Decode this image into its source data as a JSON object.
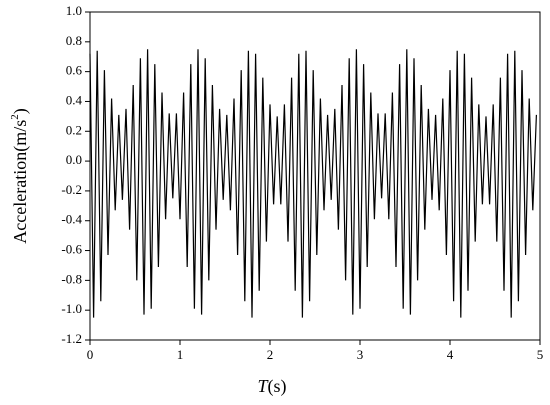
{
  "chart_data": {
    "type": "line",
    "xlabel": {
      "italic": "T",
      "text": "(s)"
    },
    "ylabel": {
      "text": "Acceleration(m/s",
      "sup": "2",
      "end": ")"
    },
    "xlim": [
      0,
      5
    ],
    "xticks": [
      0,
      1,
      2,
      3,
      4,
      5
    ],
    "ylim": [
      -1.2,
      1.0
    ],
    "yticks": [
      -1.2,
      {
        "value": -1.0,
        "label": "-1.0"
      },
      -0.8,
      -0.6,
      -0.4,
      -0.2,
      {
        "value": 0,
        "label": "0.0"
      },
      0.2,
      0.4,
      0.6,
      0.8,
      {
        "value": 1.0,
        "label": "1.0"
      }
    ],
    "series": [
      {
        "color": "#000000",
        "x": [
          0,
          0.04,
          0.08,
          0.12,
          0.16,
          0.2,
          0.24,
          0.28,
          0.32,
          0.36,
          0.4,
          0.44,
          0.48,
          0.52,
          0.56,
          0.6,
          0.64,
          0.68,
          0.72,
          0.76,
          0.8,
          0.84,
          0.88,
          0.92,
          0.96,
          1.0,
          1.04,
          1.08,
          1.12,
          1.16,
          1.2,
          1.24,
          1.28,
          1.32,
          1.36,
          1.4,
          1.44,
          1.48,
          1.52,
          1.56,
          1.6,
          1.64,
          1.68,
          1.72,
          1.76,
          1.8,
          1.84,
          1.88,
          1.92,
          1.96,
          2.0,
          2.04,
          2.08,
          2.12,
          2.16,
          2.2,
          2.24,
          2.28,
          2.32,
          2.36,
          2.4,
          2.44,
          2.48,
          2.52,
          2.56,
          2.6,
          2.64,
          2.68,
          2.72,
          2.76,
          2.8,
          2.84,
          2.88,
          2.92,
          2.96,
          3.0,
          3.04,
          3.08,
          3.12,
          3.16,
          3.2,
          3.24,
          3.28,
          3.32,
          3.36,
          3.4,
          3.44,
          3.48,
          3.52,
          3.56,
          3.6,
          3.64,
          3.68,
          3.72,
          3.76,
          3.8,
          3.84,
          3.88,
          3.92,
          3.96,
          4.0,
          4.04,
          4.08,
          4.12,
          4.16,
          4.2,
          4.24,
          4.28,
          4.32,
          4.36,
          4.4,
          4.44,
          4.48,
          4.52,
          4.56,
          4.6,
          4.64,
          4.68,
          4.72,
          4.76,
          4.8,
          4.84,
          4.88,
          4.92,
          4.96
        ],
        "values": [
          0.72,
          -1.05,
          0.74,
          -0.94,
          0.61,
          -0.63,
          0.42,
          -0.33,
          0.31,
          -0.26,
          0.35,
          -0.46,
          0.51,
          -0.8,
          0.69,
          -1.03,
          0.75,
          -0.99,
          0.65,
          -0.71,
          0.46,
          -0.39,
          0.32,
          -0.25,
          0.32,
          -0.39,
          0.46,
          -0.71,
          0.65,
          -0.99,
          0.75,
          -1.03,
          0.69,
          -0.8,
          0.51,
          -0.46,
          0.35,
          -0.26,
          0.31,
          -0.33,
          0.42,
          -0.63,
          0.61,
          -0.94,
          0.74,
          -1.05,
          0.72,
          -0.87,
          0.56,
          -0.54,
          0.38,
          -0.29,
          0.3,
          -0.29,
          0.38,
          -0.54,
          0.56,
          -0.87,
          0.72,
          -1.05,
          0.74,
          -0.94,
          0.61,
          -0.63,
          0.42,
          -0.33,
          0.31,
          -0.26,
          0.35,
          -0.46,
          0.51,
          -0.8,
          0.69,
          -1.03,
          0.75,
          -0.99,
          0.65,
          -0.71,
          0.46,
          -0.39,
          0.32,
          -0.25,
          0.32,
          -0.39,
          0.46,
          -0.71,
          0.65,
          -0.99,
          0.75,
          -1.03,
          0.69,
          -0.8,
          0.51,
          -0.46,
          0.35,
          -0.26,
          0.31,
          -0.33,
          0.42,
          -0.63,
          0.61,
          -0.94,
          0.74,
          -1.05,
          0.72,
          -0.87,
          0.56,
          -0.54,
          0.38,
          -0.29,
          0.3,
          -0.29,
          0.38,
          -0.54,
          0.56,
          -0.87,
          0.72,
          -1.05,
          0.74,
          -0.94,
          0.61,
          -0.63,
          0.42,
          -0.33,
          0.31
        ]
      }
    ]
  }
}
